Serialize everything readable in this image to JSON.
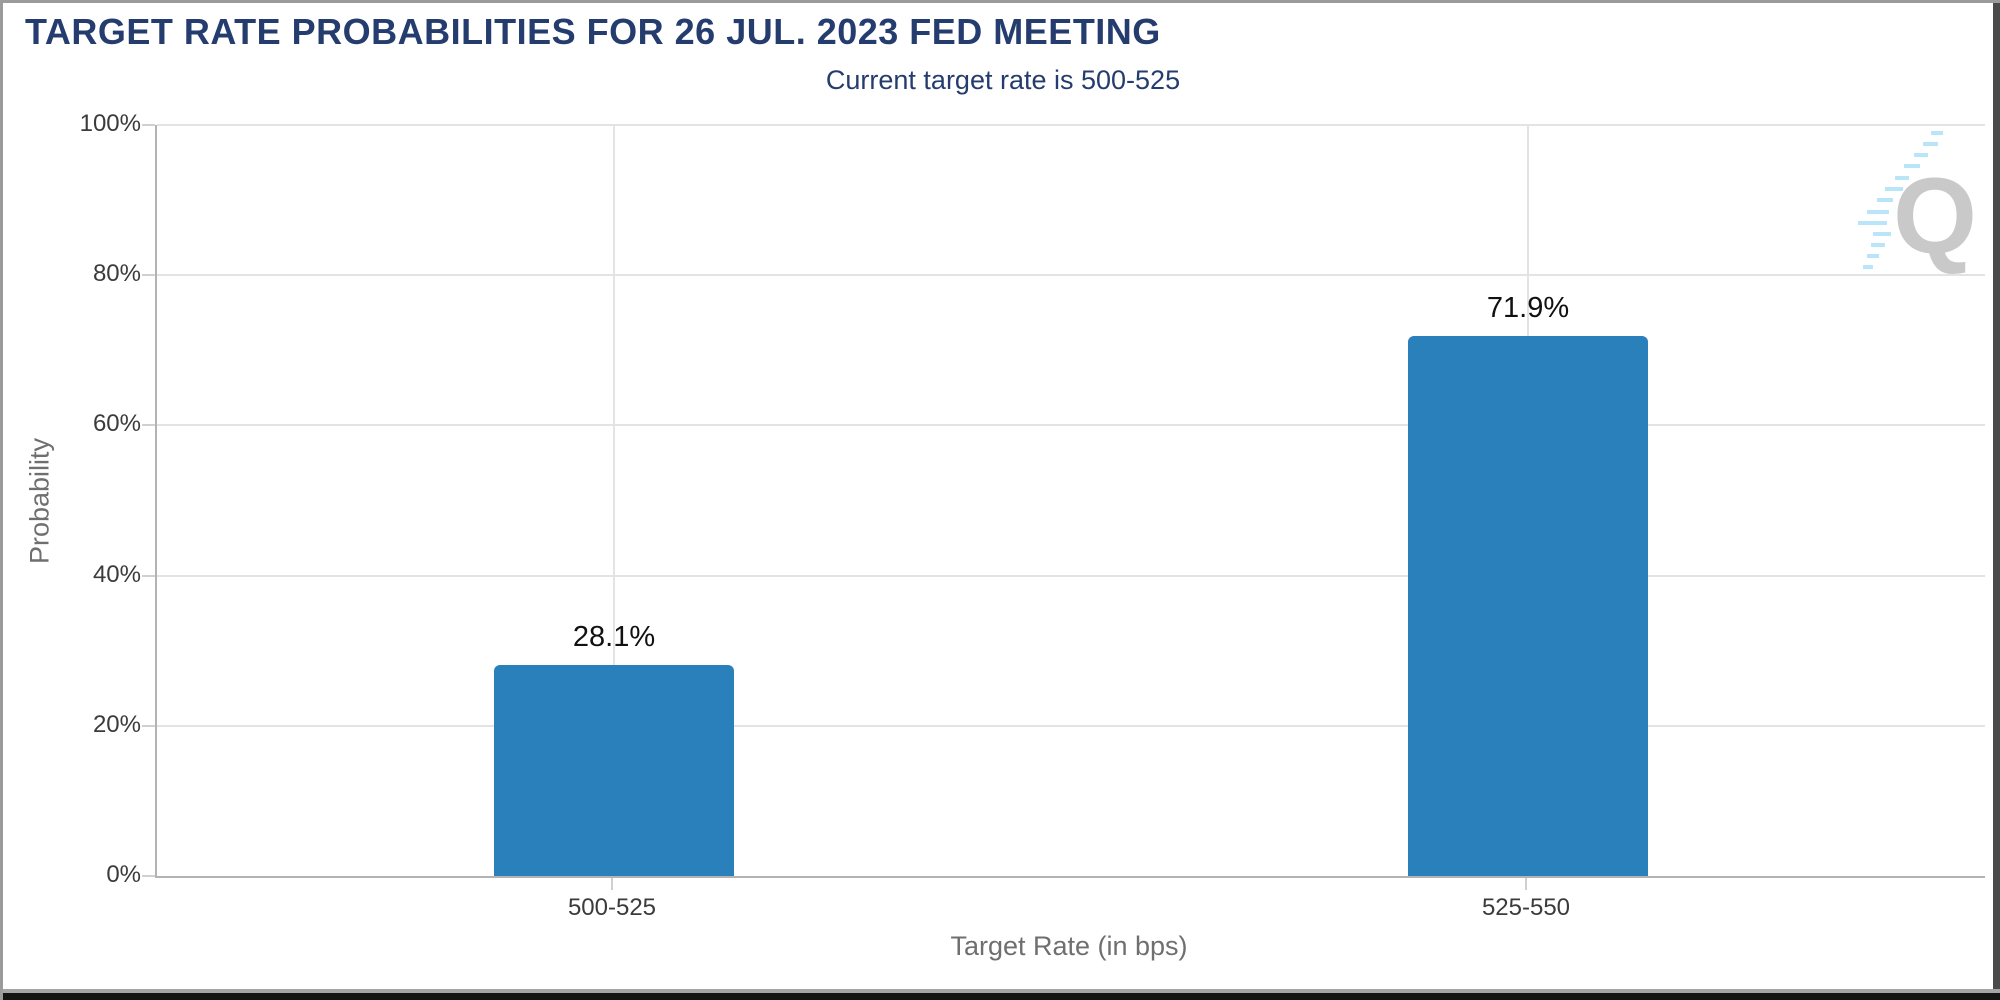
{
  "header": {
    "title": "TARGET RATE PROBABILITIES FOR 26 JUL. 2023 FED MEETING",
    "subtitle": "Current target rate is 500-525"
  },
  "chart_data": {
    "type": "bar",
    "title": "TARGET RATE PROBABILITIES FOR 26 JUL. 2023 FED MEETING",
    "subtitle": "Current target rate is 500-525",
    "categories": [
      "500-525",
      "525-550"
    ],
    "values": [
      28.1,
      71.9
    ],
    "value_labels": [
      "28.1%",
      "71.9%"
    ],
    "xlabel": "Target Rate (in bps)",
    "ylabel": "Probability",
    "ylim": [
      0,
      100
    ],
    "yticks": [
      0,
      20,
      40,
      60,
      80,
      100
    ],
    "ytick_labels": [
      "0%",
      "20%",
      "40%",
      "60%",
      "80%",
      "100%"
    ],
    "grid": true,
    "legend": "none",
    "bar_color": "#2a80ba"
  },
  "watermark": {
    "icon": "quikstrike-q-logo",
    "letter": "Q"
  },
  "colors": {
    "title_navy": "#253c6e",
    "bar_blue": "#2a80ba",
    "gridline": "#e3e3e3",
    "axis_line": "#b3b3b3",
    "tick_text": "#3b3b3b",
    "axis_title_text": "#6f6f6f",
    "watermark_gray": "#c9c9c9",
    "watermark_blue": "#b9e5f8"
  }
}
